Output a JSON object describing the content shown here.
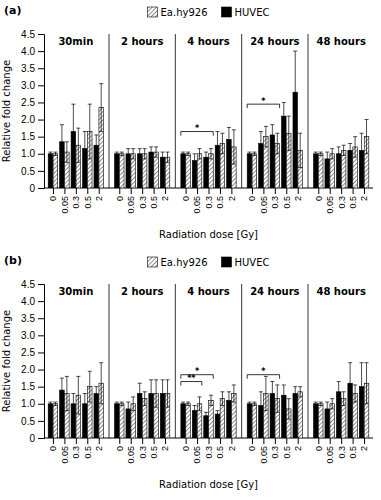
{
  "chart_data": [
    {
      "type": "bar",
      "title": "(a)",
      "x_label": "Radiation dose [Gy]",
      "y_label": "Relative fold change",
      "categories": [
        "0",
        "0.05",
        "0.3",
        "0.5",
        "2",
        "0",
        "0.05",
        "0.3",
        "0.5",
        "2",
        "0",
        "0.05",
        "0.3",
        "0.5",
        "2",
        "0",
        "0.05",
        "0.3",
        "0.5",
        "2",
        "0",
        "0.05",
        "0.3",
        "0.5",
        "2"
      ],
      "groups": [
        "30min",
        "2 hours",
        "4 hours",
        "24 hours",
        "48 hours"
      ],
      "series": [
        {
          "name": "HUVEC",
          "color": "black",
          "values": [
            1.0,
            1.35,
            1.65,
            1.15,
            1.25,
            1.0,
            1.0,
            1.0,
            1.05,
            0.9,
            1.0,
            0.8,
            0.9,
            1.25,
            1.42,
            1.0,
            1.3,
            1.55,
            2.1,
            2.8,
            1.0,
            0.85,
            1.0,
            1.1,
            1.1
          ],
          "errors": [
            0.05,
            0.5,
            0.8,
            0.5,
            0.3,
            0.05,
            0.15,
            0.15,
            0.15,
            0.15,
            0.05,
            0.2,
            0.15,
            0.4,
            0.35,
            0.05,
            0.35,
            0.3,
            0.4,
            1.2,
            0.05,
            0.2,
            0.2,
            0.2,
            0.5
          ]
        },
        {
          "name": "Ea.hy926",
          "color": "white",
          "values": [
            1.0,
            1.05,
            1.25,
            1.65,
            2.35,
            1.0,
            1.0,
            1.0,
            1.05,
            0.9,
            1.0,
            1.0,
            1.0,
            1.3,
            1.2,
            1.0,
            1.5,
            1.3,
            1.6,
            1.1,
            1.0,
            1.0,
            1.1,
            1.2,
            1.5
          ],
          "errors": [
            0.05,
            0.3,
            0.5,
            0.8,
            0.7,
            0.05,
            0.15,
            0.15,
            0.15,
            0.15,
            0.05,
            0.15,
            0.15,
            0.3,
            0.5,
            0.05,
            0.3,
            0.3,
            0.5,
            0.5,
            0.05,
            0.15,
            0.15,
            0.3,
            0.5
          ]
        }
      ],
      "annotations": [
        {
          "text": "*",
          "from": 10,
          "to": 12,
          "y": 1.65
        },
        {
          "text": "*",
          "from": 15,
          "to": 17,
          "y": 2.45
        }
      ],
      "ylim": [
        0,
        4.5
      ],
      "yticks": [
        0,
        0.5,
        {
          "value": 1.0,
          "label": "1.0"
        },
        1.5,
        {
          "value": 2.0,
          "label": "2.0"
        },
        2.5,
        {
          "value": 3.0,
          "label": "3.0"
        },
        3.5,
        {
          "value": 4.0,
          "label": "4.0"
        },
        4.5
      ],
      "legend": "top"
    },
    {
      "type": "bar",
      "title": "(b)",
      "x_label": "Radiation dose [Gy]",
      "y_label": "Relative fold change",
      "categories": [
        "0",
        "0.05",
        "0.3",
        "0.5",
        "2",
        "0",
        "0.05",
        "0.3",
        "0.5",
        "2",
        "0",
        "0.05",
        "0.3",
        "0.5",
        "2",
        "0",
        "0.05",
        "0.3",
        "0.5",
        "2",
        "0",
        "0.05",
        "0.3",
        "0.5",
        "2"
      ],
      "groups": [
        "30min",
        "2 hours",
        "4 hours",
        "24 hours",
        "48 hours"
      ],
      "series": [
        {
          "name": "HUVEC",
          "color": "black",
          "values": [
            1.0,
            1.4,
            1.0,
            1.0,
            1.3,
            1.0,
            0.85,
            1.3,
            1.3,
            1.3,
            1.0,
            0.8,
            0.65,
            0.7,
            1.1,
            1.0,
            0.95,
            1.3,
            1.25,
            1.3,
            1.0,
            0.85,
            1.35,
            1.6,
            1.5
          ],
          "errors": [
            0.05,
            0.35,
            0.3,
            0.3,
            0.2,
            0.05,
            0.2,
            0.3,
            0.4,
            0.4,
            0.05,
            0.15,
            0.1,
            0.1,
            0.25,
            0.05,
            0.4,
            0.35,
            0.3,
            0.2,
            0.05,
            0.2,
            0.3,
            0.6,
            0.7
          ]
        },
        {
          "name": "Ea.hy926",
          "color": "white",
          "values": [
            1.0,
            1.3,
            1.25,
            1.5,
            1.6,
            1.0,
            1.0,
            1.15,
            1.3,
            1.3,
            1.0,
            1.0,
            1.1,
            1.15,
            1.3,
            1.0,
            1.3,
            1.15,
            0.85,
            1.35,
            1.0,
            1.0,
            1.15,
            1.3,
            1.6
          ],
          "errors": [
            0.05,
            0.5,
            0.55,
            0.45,
            0.6,
            0.05,
            0.2,
            0.2,
            0.4,
            0.4,
            0.05,
            0.2,
            0.15,
            0.2,
            0.25,
            0.05,
            0.5,
            0.4,
            0.3,
            0.15,
            0.05,
            0.15,
            0.2,
            0.25,
            0.6
          ]
        }
      ],
      "annotations": [
        {
          "text": "**",
          "from": 10,
          "to": 11,
          "y": 1.65
        },
        {
          "text": "*",
          "from": 10,
          "to": 12,
          "y": 1.85
        },
        {
          "text": "*",
          "from": 15,
          "to": 17,
          "y": 1.85
        }
      ],
      "ylim": [
        0,
        4.5
      ],
      "yticks": [
        0,
        0.5,
        {
          "value": 1.0,
          "label": "1.0"
        },
        1.5,
        {
          "value": 2.0,
          "label": "2.0"
        },
        2.5,
        {
          "value": 3.0,
          "label": "3.0"
        },
        3.5,
        {
          "value": 4.0,
          "label": "4.0"
        },
        4.5
      ],
      "legend": "top"
    }
  ]
}
